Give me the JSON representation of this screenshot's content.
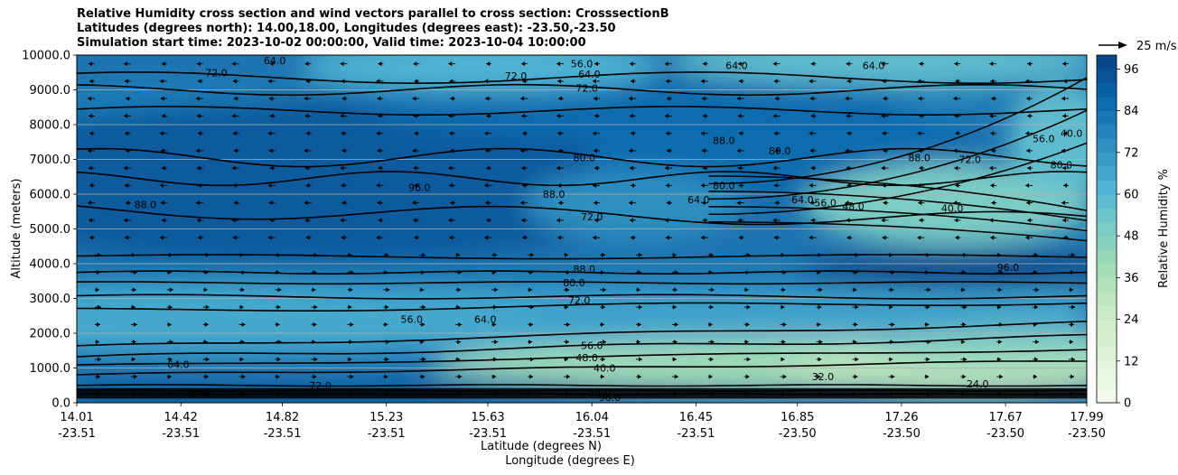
{
  "title_lines": [
    "Relative Humidity cross section and wind vectors parallel to cross section: CrosssectionB",
    "Latitudes (degrees north): 14.00,18.00, Longitudes (degrees east): -23.50,-23.50",
    "Simulation start time: 2023-10-02 00:00:00, Valid time: 2023-10-04 10:00:00"
  ],
  "chart_data": {
    "type": "heatmap",
    "ylabel": "Altitude (meters)",
    "xlabel_lines": [
      "Latitude (degrees N)",
      "Longitude (degrees E)"
    ],
    "ylim": [
      0,
      10000
    ],
    "y_ticks": [
      "0.0",
      "1000.0",
      "2000.0",
      "3000.0",
      "4000.0",
      "5000.0",
      "6000.0",
      "7000.0",
      "8000.0",
      "9000.0",
      "10000.0"
    ],
    "x_ticks": [
      {
        "lat": "14.01",
        "lon": "-23.51"
      },
      {
        "lat": "14.42",
        "lon": "-23.51"
      },
      {
        "lat": "14.82",
        "lon": "-23.51"
      },
      {
        "lat": "15.23",
        "lon": "-23.51"
      },
      {
        "lat": "15.63",
        "lon": "-23.51"
      },
      {
        "lat": "16.04",
        "lon": "-23.51"
      },
      {
        "lat": "16.45",
        "lon": "-23.51"
      },
      {
        "lat": "16.85",
        "lon": "-23.50"
      },
      {
        "lat": "17.26",
        "lon": "-23.50"
      },
      {
        "lat": "17.67",
        "lon": "-23.50"
      },
      {
        "lat": "17.99",
        "lon": "-23.50"
      }
    ],
    "grid": "horizontal lines at y ticks",
    "colorbar": {
      "label": "Relative Humidity %",
      "ticks": [
        0,
        12,
        24,
        36,
        48,
        60,
        72,
        84,
        96
      ],
      "range": [
        0,
        100
      ],
      "colors": [
        "#f7fcf0",
        "#e0f3db",
        "#ccebc5",
        "#a8ddb5",
        "#7bccc4",
        "#4eb3d3",
        "#2b8cbe",
        "#0868ac",
        "#084081"
      ]
    },
    "quiver_key": "25 m/s",
    "contour_levels": [
      32,
      40,
      48,
      56,
      64,
      72,
      80,
      88,
      96
    ],
    "contour_labels": [
      {
        "text": "96.0",
        "lat": 15.36,
        "alt": 6200
      },
      {
        "text": "88.0",
        "lat": 14.28,
        "alt": 5700
      },
      {
        "text": "88.0",
        "lat": 15.89,
        "alt": 6000
      },
      {
        "text": "88.0",
        "lat": 16.01,
        "alt": 3850
      },
      {
        "text": "80.0",
        "lat": 16.01,
        "alt": 7050
      },
      {
        "text": "80.0",
        "lat": 16.56,
        "alt": 6250
      },
      {
        "text": "72.0",
        "lat": 16.04,
        "alt": 5350
      },
      {
        "text": "80.0",
        "lat": 15.97,
        "alt": 3450
      },
      {
        "text": "72.0",
        "lat": 15.99,
        "alt": 2950
      },
      {
        "text": "56.0",
        "lat": 16.04,
        "alt": 1650
      },
      {
        "text": "48.0",
        "lat": 16.02,
        "alt": 1300
      },
      {
        "text": "40.0",
        "lat": 16.09,
        "alt": 1000
      },
      {
        "text": "32.0",
        "lat": 16.95,
        "alt": 750
      },
      {
        "text": "56.0",
        "lat": 16.0,
        "alt": 9750
      },
      {
        "text": "64.0",
        "lat": 16.03,
        "alt": 9450
      },
      {
        "text": "72.0",
        "lat": 16.02,
        "alt": 9050
      },
      {
        "text": "64.0",
        "lat": 16.61,
        "alt": 9700
      },
      {
        "text": "64.0",
        "lat": 17.15,
        "alt": 9700
      },
      {
        "text": "64.0",
        "lat": 14.79,
        "alt": 9850
      },
      {
        "text": "72.0",
        "lat": 14.56,
        "alt": 9500
      },
      {
        "text": "64.0",
        "lat": 14.41,
        "alt": 1100
      },
      {
        "text": "72.0",
        "lat": 14.97,
        "alt": 500
      },
      {
        "text": "96.0",
        "lat": 14.5,
        "alt": 300
      },
      {
        "text": "56.0",
        "lat": 15.33,
        "alt": 2400
      },
      {
        "text": "64.0",
        "lat": 15.62,
        "alt": 2400
      },
      {
        "text": "88.0",
        "lat": 17.33,
        "alt": 7050
      },
      {
        "text": "64.0",
        "lat": 16.87,
        "alt": 5850
      },
      {
        "text": "56.0",
        "lat": 16.96,
        "alt": 5750
      },
      {
        "text": "48.0",
        "lat": 17.07,
        "alt": 5650
      },
      {
        "text": "40.0",
        "lat": 17.46,
        "alt": 5600
      },
      {
        "text": "96.0",
        "lat": 17.68,
        "alt": 3900
      },
      {
        "text": "72.0",
        "lat": 17.53,
        "alt": 7000
      },
      {
        "text": "56.0",
        "lat": 17.82,
        "alt": 7600
      },
      {
        "text": "80.0",
        "lat": 17.89,
        "alt": 6850
      },
      {
        "text": "40.0",
        "lat": 17.93,
        "alt": 7750
      },
      {
        "text": "64.0",
        "lat": 16.46,
        "alt": 5850
      },
      {
        "text": "72.0",
        "lat": 15.74,
        "alt": 9400
      },
      {
        "text": "88.0",
        "lat": 16.56,
        "alt": 7550
      },
      {
        "text": "80.0",
        "lat": 16.78,
        "alt": 7250
      },
      {
        "text": "24.0",
        "lat": 17.56,
        "alt": 550
      },
      {
        "text": "88.0",
        "lat": 16.07,
        "alt": 300
      },
      {
        "text": "96.0",
        "lat": 16.11,
        "alt": 150
      }
    ]
  }
}
